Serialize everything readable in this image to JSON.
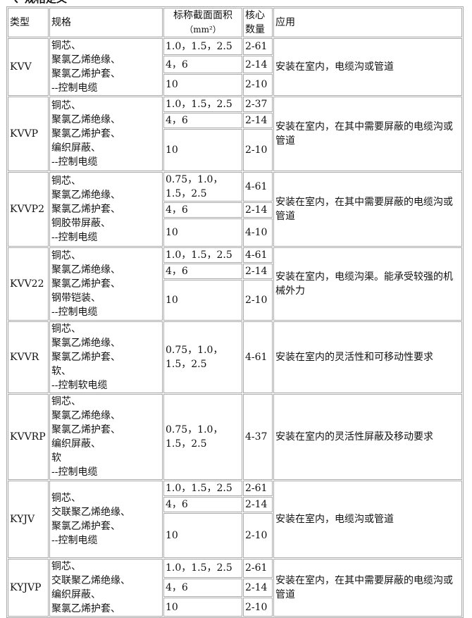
{
  "title": "、规格定义",
  "headers": {
    "type": "类型",
    "spec": "规格",
    "area": "标称截面面积",
    "area_unit": "（mm²）",
    "cores1": "核心",
    "cores2": "数量",
    "app": "应用"
  },
  "rows": [
    {
      "type": "KVV",
      "spec": [
        "铜芯、",
        "聚氯乙烯绝缘、",
        "聚氯乙烯护套、",
        "--控制电缆"
      ],
      "subs": [
        {
          "area": "1.0，1.5，2.5",
          "cores": "2-61"
        },
        {
          "area": "4，6",
          "cores": "2-14"
        },
        {
          "area": "10",
          "cores": "2-10"
        }
      ],
      "app": "安装在室内，电缆沟或管道"
    },
    {
      "type": "KVVP",
      "spec": [
        "铜芯、",
        "聚氯乙烯绝缘、",
        "聚氯乙烯护套、",
        "编织屏蔽、",
        "--控制电缆"
      ],
      "subs": [
        {
          "area": "1.0，1.5，2.5",
          "cores": "2-37"
        },
        {
          "area": "4，6",
          "cores": "2-14"
        },
        {
          "area": "10",
          "cores": "2-10"
        }
      ],
      "app": "安装在室内，在其中需要屏蔽的电缆沟或管道"
    },
    {
      "type": "KVVP2",
      "spec": [
        "铜芯、",
        "聚氯乙烯绝缘、",
        "聚氯乙烯护套、",
        "铜胶带屏蔽、",
        "--控制电缆"
      ],
      "subs": [
        {
          "area": "0.75，1.0，1.5，2.5",
          "cores": "4-61"
        },
        {
          "area": "4，6",
          "cores": "2-14"
        },
        {
          "area": "10",
          "cores": "4-10"
        }
      ],
      "app": "安装在室内，在其中需要屏蔽的电缆沟或管道"
    },
    {
      "type": "KVV22",
      "spec": [
        "铜芯、",
        "聚氯乙烯绝缘、",
        "聚氯乙烯护套、",
        "钢带铠装、",
        "--控制电缆"
      ],
      "subs": [
        {
          "area": "1.0，1.5，2.5",
          "cores": "4-61"
        },
        {
          "area": "4，6",
          "cores": "2-14"
        },
        {
          "area": "10",
          "cores": "2-10"
        }
      ],
      "app": "安装在室内，电缆沟渠。能承受较强的机械外力"
    },
    {
      "type": "KVVR",
      "spec": [
        "铜芯、",
        "聚氯乙烯绝缘、",
        "聚氯乙烯护套、",
        "软、",
        "--控制软电缆"
      ],
      "subs": [
        {
          "area": "0.75，1.0，1.5，2.5",
          "cores": "4-61"
        }
      ],
      "app": "安装在室内的灵活性和可移动性要求"
    },
    {
      "type": "KVVRP",
      "spec": [
        "铜芯、",
        "聚氯乙烯绝缘、",
        "聚氯乙烯护套、",
        "编织屏蔽、",
        "软",
        "--控制电缆"
      ],
      "subs": [
        {
          "area": "0.75，1.0，1.5，2.5",
          "cores": "4-37"
        }
      ],
      "app": "安装在室内的灵活性屏蔽及移动要求"
    },
    {
      "type": "KYJV",
      "spec": [
        "铜芯、",
        "交联聚乙烯绝缘、",
        "聚氯乙烯护套、",
        "--控制电缆"
      ],
      "subs": [
        {
          "area": "1.0，1.5，2.5",
          "cores": "2-61"
        },
        {
          "area": "4，6",
          "cores": "2-14"
        },
        {
          "area": "10",
          "cores": "2-10"
        }
      ],
      "app": "安装在室内，电缆沟或管道"
    },
    {
      "type": "KYJVP",
      "spec": [
        "铜芯、",
        "交联聚乙烯绝缘、",
        "编织屏蔽、",
        "聚氯乙烯护套、"
      ],
      "subs": [
        {
          "area": "1.0，1.5，2.5",
          "cores": "2-61"
        },
        {
          "area": "4，6",
          "cores": "2-14"
        },
        {
          "area": "10",
          "cores": "2-10"
        }
      ],
      "app": "安装在室内，在其中需要屏蔽的电缆沟或管道"
    }
  ]
}
